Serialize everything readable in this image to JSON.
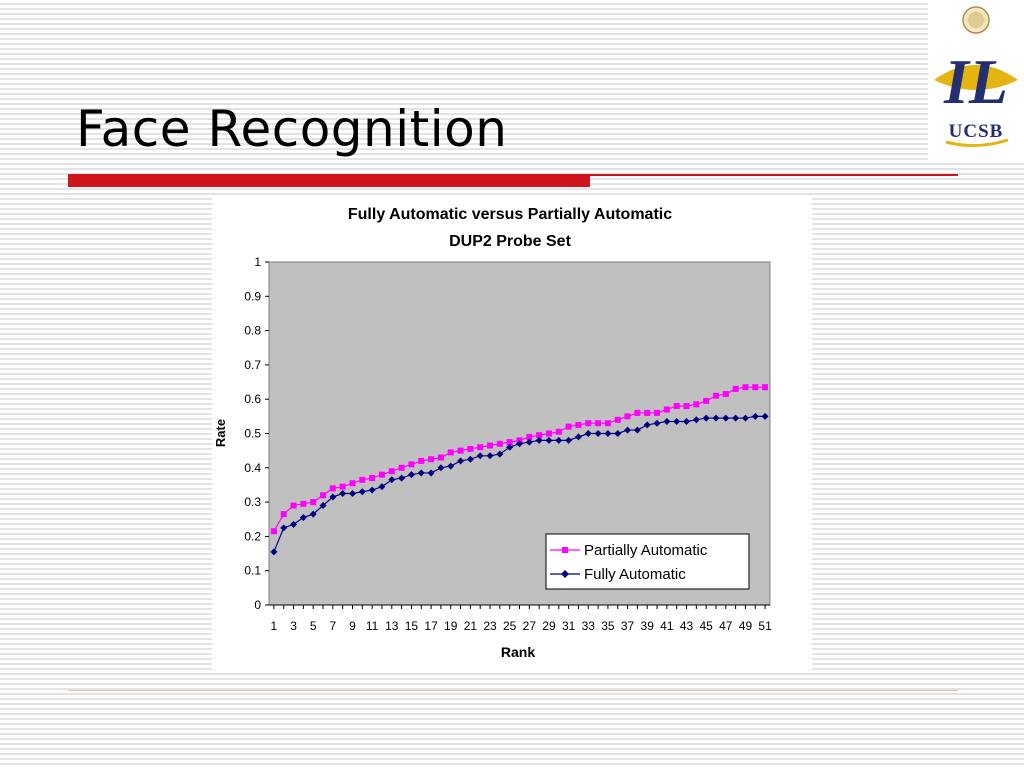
{
  "slide": {
    "title": "Face Recognition"
  },
  "logo": {
    "text": "UCSB",
    "mark": "IL"
  },
  "colors": {
    "accent_red": "#d0141c",
    "plot_bg": "#c0c0c0",
    "partial": "#ff00ff",
    "fully": "#000080"
  },
  "chart_data": {
    "type": "line",
    "title": "Fully Automatic versus Partially Automatic",
    "subtitle": "DUP2 Probe Set",
    "xlabel": "Rank",
    "ylabel": "Rate",
    "ylim": [
      0,
      1
    ],
    "yticks": [
      "0",
      "0.1",
      "0.2",
      "0.3",
      "0.4",
      "0.5",
      "0.6",
      "0.7",
      "0.8",
      "0.9",
      "1"
    ],
    "xticks": [
      "1",
      "3",
      "5",
      "7",
      "9",
      "11",
      "13",
      "15",
      "17",
      "19",
      "21",
      "23",
      "25",
      "27",
      "29",
      "31",
      "33",
      "35",
      "37",
      "39",
      "41",
      "43",
      "45",
      "47",
      "49",
      "51"
    ],
    "x": [
      1,
      2,
      3,
      4,
      5,
      6,
      7,
      8,
      9,
      10,
      11,
      12,
      13,
      14,
      15,
      16,
      17,
      18,
      19,
      20,
      21,
      22,
      23,
      24,
      25,
      26,
      27,
      28,
      29,
      30,
      31,
      32,
      33,
      34,
      35,
      36,
      37,
      38,
      39,
      40,
      41,
      42,
      43,
      44,
      45,
      46,
      47,
      48,
      49,
      50,
      51
    ],
    "grid": false,
    "legend_position": "bottom-right",
    "series": [
      {
        "name": "Partially Automatic",
        "color": "#ff00ff",
        "marker": "square",
        "values": [
          0.215,
          0.265,
          0.29,
          0.295,
          0.3,
          0.32,
          0.34,
          0.345,
          0.355,
          0.365,
          0.37,
          0.38,
          0.39,
          0.4,
          0.41,
          0.42,
          0.425,
          0.43,
          0.445,
          0.45,
          0.455,
          0.46,
          0.465,
          0.47,
          0.475,
          0.48,
          0.49,
          0.495,
          0.5,
          0.505,
          0.52,
          0.525,
          0.53,
          0.53,
          0.53,
          0.54,
          0.55,
          0.56,
          0.56,
          0.56,
          0.57,
          0.58,
          0.58,
          0.585,
          0.595,
          0.61,
          0.615,
          0.63,
          0.635,
          0.635,
          0.635
        ]
      },
      {
        "name": "Fully Automatic",
        "color": "#000080",
        "marker": "diamond",
        "values": [
          0.155,
          0.225,
          0.235,
          0.255,
          0.265,
          0.29,
          0.315,
          0.325,
          0.325,
          0.33,
          0.335,
          0.345,
          0.365,
          0.37,
          0.38,
          0.385,
          0.385,
          0.4,
          0.405,
          0.42,
          0.425,
          0.435,
          0.435,
          0.44,
          0.46,
          0.47,
          0.475,
          0.48,
          0.48,
          0.48,
          0.48,
          0.49,
          0.5,
          0.5,
          0.5,
          0.5,
          0.51,
          0.51,
          0.525,
          0.53,
          0.535,
          0.535,
          0.535,
          0.54,
          0.545,
          0.545,
          0.545,
          0.545,
          0.545,
          0.55,
          0.55
        ]
      }
    ]
  }
}
